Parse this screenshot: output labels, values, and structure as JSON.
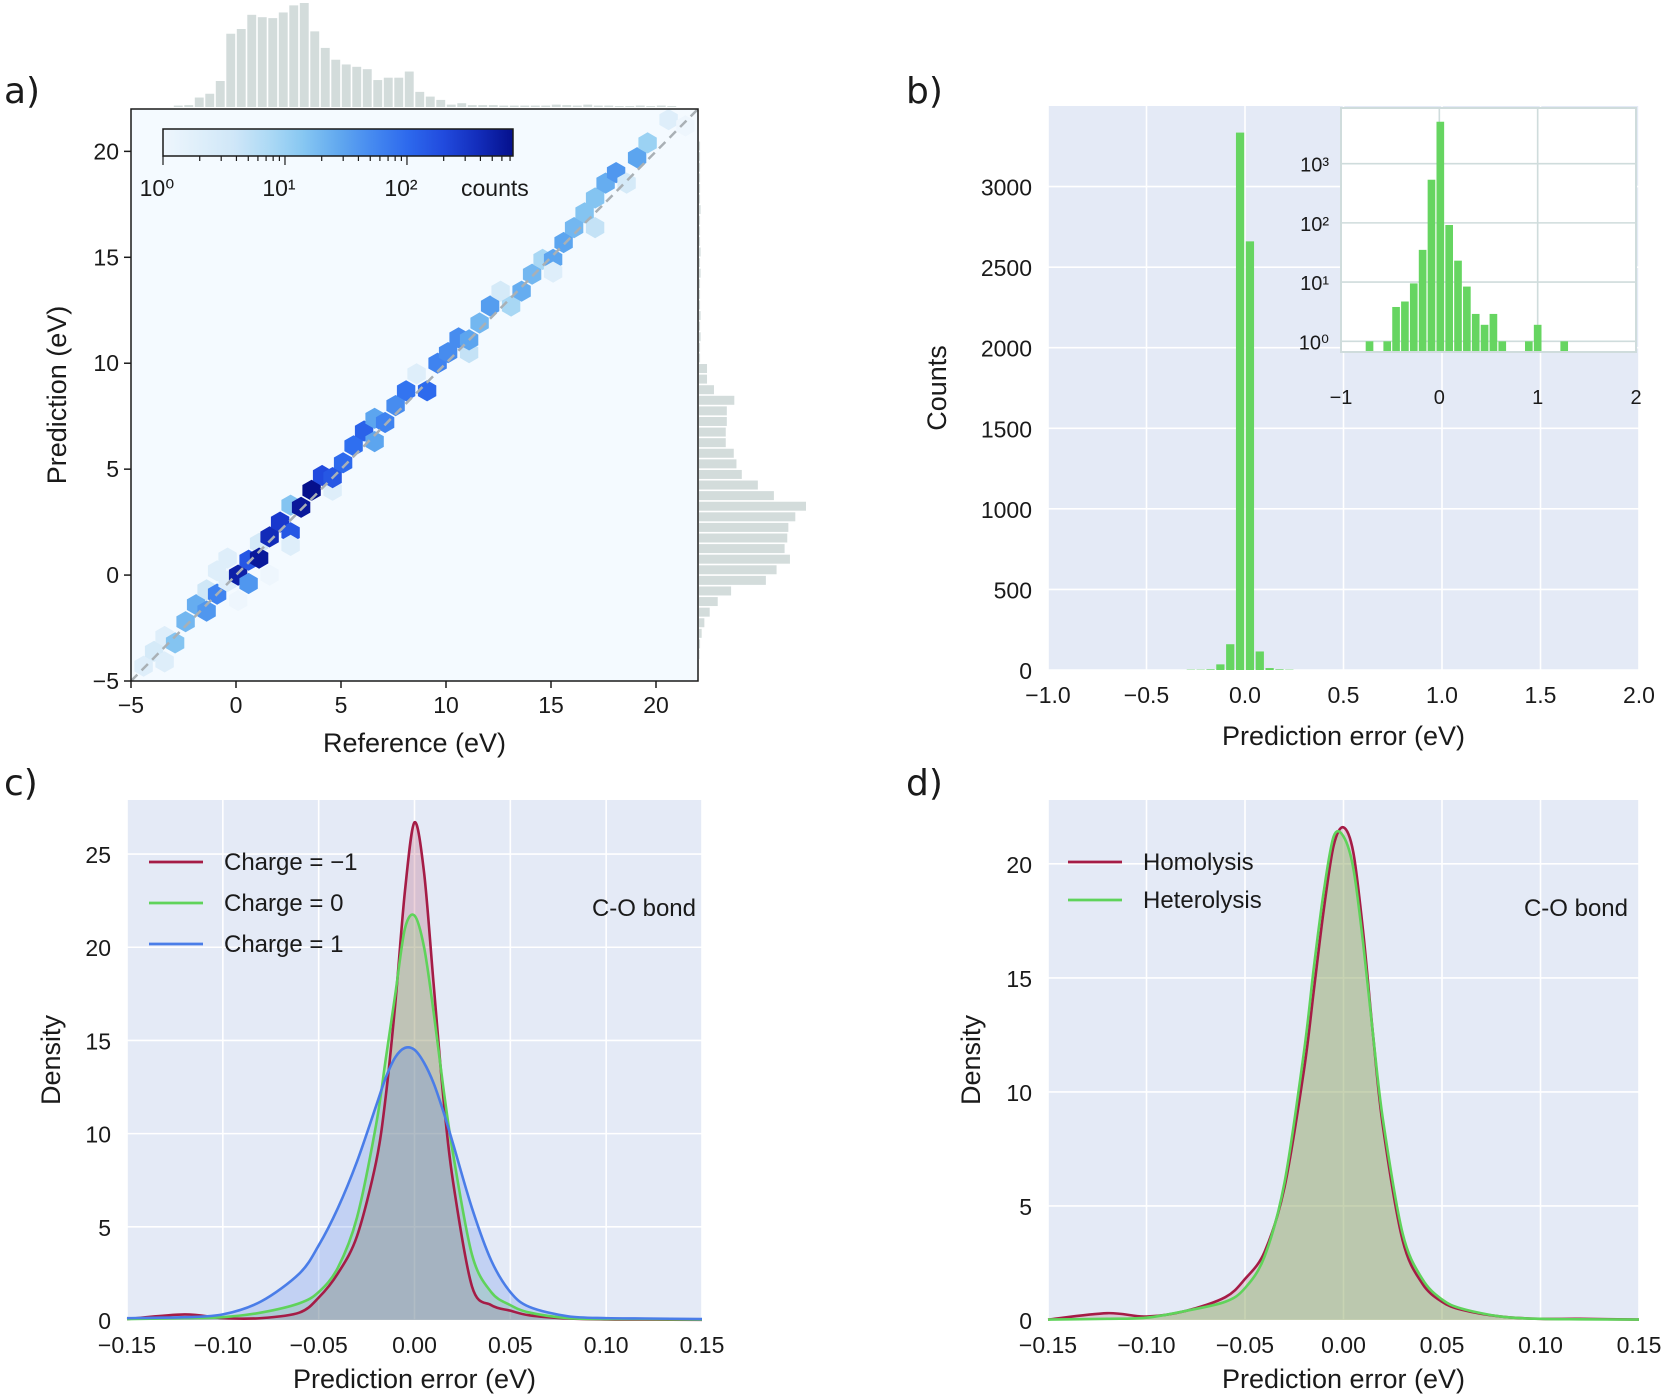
{
  "panel_labels": [
    "a)",
    "b)",
    "c)",
    "d)"
  ],
  "colors": {
    "seaborn_background": "#e4eaf6",
    "grid": "#ffffff",
    "hist_green": "#66d561",
    "marginal_hist": "#d3dcdb",
    "hexbin_axes_background": "#f4faff",
    "charge_minus1": "#a51c46",
    "charge_0": "#5fd35a",
    "charge_1": "#4a7de8",
    "homolysis": "#a51c46",
    "heterolysis": "#5fd35a"
  },
  "chart_data": [
    {
      "panel": "a)",
      "type": "hexbin",
      "xlabel": "Reference (eV)",
      "ylabel": "Prediction (eV)",
      "xlim": [
        -5,
        22
      ],
      "ylim": [
        -5,
        22
      ],
      "xticks": [
        -5,
        0,
        5,
        10,
        15,
        20
      ],
      "xticklabels": [
        "−5",
        "0",
        "5",
        "10",
        "15",
        "20"
      ],
      "yticks": [
        -5,
        0,
        5,
        10,
        15,
        20
      ],
      "yticklabels": [
        "−5",
        "0",
        "5",
        "10",
        "15",
        "20"
      ],
      "diagonal": "dashed y = x reference line",
      "color_scale": "log",
      "colorbar": {
        "label": "counts",
        "range": [
          1,
          740
        ],
        "ticks": [
          1,
          10,
          100
        ],
        "ticklabels": [
          "10⁰",
          "10¹",
          "10²"
        ],
        "colormap": "white to dark blue"
      },
      "cells": [
        [
          -4.4,
          -4.3,
          2
        ],
        [
          -3.9,
          -3.6,
          3
        ],
        [
          -3.4,
          -2.9,
          2
        ],
        [
          -3.4,
          -4.1,
          2
        ],
        [
          -2.9,
          -3.2,
          15
        ],
        [
          -2.4,
          -2.2,
          20
        ],
        [
          -1.9,
          -1.4,
          25
        ],
        [
          -1.4,
          -0.7,
          4
        ],
        [
          -1.4,
          -1.7,
          40
        ],
        [
          -0.9,
          -0.9,
          60
        ],
        [
          -0.9,
          0.2,
          2
        ],
        [
          -0.4,
          -0.3,
          2
        ],
        [
          -0.4,
          0.8,
          2
        ],
        [
          0.1,
          0.0,
          500
        ],
        [
          0.1,
          -1.2,
          1
        ],
        [
          0.6,
          0.7,
          150
        ],
        [
          0.6,
          -0.4,
          40
        ],
        [
          1.1,
          1.5,
          3
        ],
        [
          1.1,
          0.8,
          600
        ],
        [
          1.6,
          1.8,
          400
        ],
        [
          1.6,
          0.0,
          1
        ],
        [
          2.1,
          2.5,
          300
        ],
        [
          2.6,
          3.3,
          15
        ],
        [
          2.6,
          2.0,
          150
        ],
        [
          2.6,
          1.4,
          2
        ],
        [
          3.1,
          3.2,
          600
        ],
        [
          3.6,
          4.0,
          800
        ],
        [
          4.1,
          4.7,
          200
        ],
        [
          4.6,
          4.0,
          2
        ],
        [
          4.6,
          4.6,
          150
        ],
        [
          5.1,
          5.3,
          100
        ],
        [
          5.6,
          6.1,
          90
        ],
        [
          6.1,
          6.8,
          120
        ],
        [
          6.6,
          6.3,
          30
        ],
        [
          6.6,
          7.4,
          30
        ],
        [
          7.1,
          7.2,
          60
        ],
        [
          7.6,
          8.0,
          50
        ],
        [
          8.1,
          8.7,
          80
        ],
        [
          8.6,
          9.5,
          2
        ],
        [
          9.1,
          8.7,
          100
        ],
        [
          9.6,
          10.0,
          60
        ],
        [
          10.1,
          10.5,
          50
        ],
        [
          10.6,
          11.2,
          50
        ],
        [
          11.1,
          10.5,
          5
        ],
        [
          11.1,
          11.1,
          30
        ],
        [
          11.6,
          11.9,
          20
        ],
        [
          12.1,
          12.7,
          35
        ],
        [
          12.6,
          13.4,
          3
        ],
        [
          13.1,
          12.7,
          8
        ],
        [
          13.6,
          13.4,
          25
        ],
        [
          14.1,
          14.2,
          20
        ],
        [
          14.6,
          14.9,
          8
        ],
        [
          15.1,
          14.9,
          30
        ],
        [
          15.1,
          14.3,
          2
        ],
        [
          15.6,
          15.7,
          30
        ],
        [
          16.1,
          16.4,
          20
        ],
        [
          16.6,
          17.1,
          15
        ],
        [
          17.1,
          16.4,
          5
        ],
        [
          17.1,
          17.8,
          15
        ],
        [
          17.6,
          18.5,
          25
        ],
        [
          18.1,
          19.0,
          40
        ],
        [
          18.6,
          18.5,
          3
        ],
        [
          19.1,
          19.7,
          30
        ],
        [
          19.6,
          20.4,
          10
        ],
        [
          20.6,
          21.5,
          2
        ],
        [
          21.4,
          21.2,
          1
        ]
      ],
      "marginal_x_hist": {
        "bin_width": 0.5,
        "bin_starts": [
          -3,
          -2.5,
          -2,
          -1.5,
          -1,
          -0.5,
          0,
          0.5,
          1,
          1.5,
          2,
          2.5,
          3,
          3.5,
          4,
          4.5,
          5,
          5.5,
          6,
          6.5,
          7,
          7.5,
          8,
          8.5,
          9,
          9.5,
          10,
          10.5,
          11,
          11.5,
          12,
          12.5,
          13,
          13.5,
          14,
          14.5,
          15,
          15.5,
          16,
          16.5,
          17,
          17.5,
          18,
          18.5,
          19,
          19.5,
          20,
          20.5
        ],
        "relative_counts": [
          3,
          4,
          20,
          28,
          55,
          155,
          165,
          195,
          190,
          188,
          200,
          215,
          220,
          160,
          125,
          100,
          90,
          85,
          80,
          57,
          62,
          62,
          75,
          32,
          22,
          15,
          5,
          8,
          4,
          4,
          4,
          3,
          3,
          3,
          3,
          3,
          5,
          4,
          3,
          5,
          3,
          3,
          2,
          2,
          3,
          2,
          3,
          2
        ]
      },
      "marginal_y_hist": {
        "bin_width": 0.5,
        "bin_starts": [
          -4,
          -3.5,
          -3,
          -2.5,
          -2,
          -1.5,
          -1,
          -0.5,
          0,
          0.5,
          1,
          1.5,
          2,
          2.5,
          3,
          3.5,
          4,
          4.5,
          5,
          5.5,
          6,
          6.5,
          7,
          7.5,
          8,
          8.5,
          9,
          9.5,
          10,
          10.5,
          11,
          11.5,
          12,
          12.5,
          13,
          13.5,
          14,
          14.5,
          15,
          15.5,
          16,
          16.5,
          17,
          17.5,
          18,
          18.5,
          19,
          19.5,
          20
        ],
        "relative_counts": [
          1,
          2,
          5,
          10,
          20,
          35,
          60,
          125,
          145,
          170,
          160,
          165,
          167,
          180,
          200,
          140,
          110,
          80,
          70,
          65,
          50,
          50,
          52,
          52,
          66,
          28,
          15,
          15,
          2,
          2,
          3,
          2,
          3,
          2,
          2,
          2,
          3,
          2,
          3,
          2,
          2,
          2,
          3,
          2,
          2,
          2,
          2,
          2,
          2
        ]
      }
    },
    {
      "panel": "b)",
      "type": "bar",
      "xlabel": "Prediction error (eV)",
      "ylabel": "Counts",
      "xlim": [
        -1.0,
        2.0
      ],
      "ylim": [
        0,
        3500
      ],
      "xticks": [
        -1.0,
        -0.5,
        0.0,
        0.5,
        1.0,
        1.5,
        2.0
      ],
      "xticklabels": [
        "−1.0",
        "−0.5",
        "0.0",
        "0.5",
        "1.0",
        "1.5",
        "2.0"
      ],
      "yticks": [
        0,
        500,
        1000,
        1500,
        2000,
        2500,
        3000
      ],
      "yticklabels": [
        "0",
        "500",
        "1000",
        "1500",
        "2000",
        "2500",
        "3000"
      ],
      "grid": true,
      "bin_width": 0.05,
      "bin_starts": [
        -0.3,
        -0.25,
        -0.2,
        -0.15,
        -0.1,
        -0.05,
        0.0,
        0.05,
        0.1,
        0.15,
        0.2
      ],
      "values": [
        2,
        2,
        4,
        35,
        160,
        3335,
        2660,
        115,
        12,
        4,
        2
      ],
      "inset": {
        "type": "bar",
        "yscale": "log",
        "xlim": [
          -1,
          2
        ],
        "ylim": [
          0.66,
          8700
        ],
        "xticks": [
          -1,
          0,
          1,
          2
        ],
        "xticklabels": [
          "−1",
          "0",
          "1",
          "2"
        ],
        "yticks": [
          1,
          10,
          100,
          1000
        ],
        "yticklabels": [
          "10⁰",
          "10¹",
          "10²",
          "10³"
        ],
        "grid": true,
        "bin_width": 0.09,
        "bin_centers": [
          -0.71,
          -0.53,
          -0.44,
          -0.35,
          -0.26,
          -0.17,
          -0.08,
          0.01,
          0.1,
          0.19,
          0.28,
          0.37,
          0.46,
          0.55,
          0.64,
          0.91,
          1.0,
          1.27
        ],
        "values": [
          1,
          1,
          3.8,
          4.7,
          9.5,
          35,
          535,
          5100,
          92,
          23,
          8.4,
          2.9,
          1.9,
          2.9,
          1,
          1,
          1.9,
          1
        ]
      }
    },
    {
      "panel": "c)",
      "type": "area",
      "xlabel": "Prediction error (eV)",
      "ylabel": "Density",
      "xlim": [
        -0.15,
        0.15
      ],
      "ylim": [
        0,
        27.9
      ],
      "xticks": [
        -0.15,
        -0.1,
        -0.05,
        0.0,
        0.05,
        0.1,
        0.15
      ],
      "xticklabels": [
        "−0.15",
        "−0.10",
        "−0.05",
        "0.00",
        "0.05",
        "0.10",
        "0.15"
      ],
      "yticks": [
        0,
        5,
        10,
        15,
        20,
        25
      ],
      "yticklabels": [
        "0",
        "5",
        "10",
        "15",
        "20",
        "25"
      ],
      "grid": true,
      "annotation": "C-O bond",
      "legend_position": "top-left",
      "x": [
        -0.15,
        -0.12,
        -0.1,
        -0.08,
        -0.06,
        -0.05,
        -0.04,
        -0.03,
        -0.02,
        -0.015,
        -0.01,
        -0.005,
        0,
        0.005,
        0.01,
        0.015,
        0.02,
        0.03,
        0.04,
        0.05,
        0.06,
        0.08,
        0.1,
        0.12,
        0.15
      ],
      "series": [
        {
          "name": "Charge = −1",
          "color_key": "charge_minus1",
          "values": [
            0.05,
            0.3,
            0.1,
            0.1,
            0.4,
            1.2,
            2.5,
            4.5,
            8.5,
            12,
            17,
            23,
            26.7,
            24,
            18,
            12,
            7.5,
            1.8,
            0.8,
            0.5,
            0.25,
            0.08,
            0.03,
            0.02,
            0.01
          ]
        },
        {
          "name": "Charge = 0",
          "color_key": "charge_0",
          "values": [
            0.05,
            0.1,
            0.15,
            0.4,
            0.9,
            1.5,
            2.8,
            5.5,
            10.5,
            14,
            17.5,
            21,
            21.7,
            20,
            16.5,
            12.5,
            9,
            3.5,
            1.5,
            0.8,
            0.4,
            0.1,
            0.05,
            0.05,
            0.02
          ]
        },
        {
          "name": "Charge = 1",
          "color_key": "charge_1",
          "values": [
            0.1,
            0.15,
            0.3,
            1,
            2.5,
            4,
            6,
            8.5,
            11.5,
            13,
            14.1,
            14.6,
            14.5,
            13.8,
            12.7,
            11.2,
            9.5,
            6,
            3.2,
            1.5,
            0.7,
            0.2,
            0.1,
            0.08,
            0.05
          ]
        }
      ]
    },
    {
      "panel": "d)",
      "type": "area",
      "xlabel": "Prediction error (eV)",
      "ylabel": "Density",
      "xlim": [
        -0.15,
        0.15
      ],
      "ylim": [
        0,
        22.8
      ],
      "xticks": [
        -0.15,
        -0.1,
        -0.05,
        0.0,
        0.05,
        0.1,
        0.15
      ],
      "xticklabels": [
        "−0.15",
        "−0.10",
        "−0.05",
        "0.00",
        "0.05",
        "0.10",
        "0.15"
      ],
      "yticks": [
        0,
        5,
        10,
        15,
        20
      ],
      "yticklabels": [
        "0",
        "5",
        "10",
        "15",
        "20"
      ],
      "grid": true,
      "annotation": "C-O bond",
      "legend_position": "top-left",
      "x": [
        -0.15,
        -0.12,
        -0.1,
        -0.08,
        -0.06,
        -0.05,
        -0.04,
        -0.03,
        -0.02,
        -0.015,
        -0.01,
        -0.005,
        0,
        0.005,
        0.01,
        0.015,
        0.02,
        0.03,
        0.04,
        0.05,
        0.06,
        0.08,
        0.1,
        0.12,
        0.15
      ],
      "series": [
        {
          "name": "Homolysis",
          "color_key": "homolysis",
          "values": [
            0.02,
            0.3,
            0.15,
            0.4,
            1.0,
            1.8,
            3.0,
            5.8,
            11,
            14.5,
            18,
            20.8,
            21.6,
            20.5,
            17,
            12.5,
            8.5,
            3.5,
            1.6,
            0.8,
            0.45,
            0.15,
            0.05,
            0.05,
            0.02
          ]
        },
        {
          "name": "Heterolysis",
          "color_key": "heterolysis",
          "values": [
            0.02,
            0.05,
            0.1,
            0.4,
            0.8,
            1.4,
            2.8,
            6,
            11.8,
            15.5,
            18.8,
            21.2,
            21.2,
            19.8,
            16.5,
            12.5,
            8.8,
            3.8,
            1.8,
            0.9,
            0.5,
            0.15,
            0.05,
            0.03,
            0.02
          ]
        }
      ]
    }
  ]
}
